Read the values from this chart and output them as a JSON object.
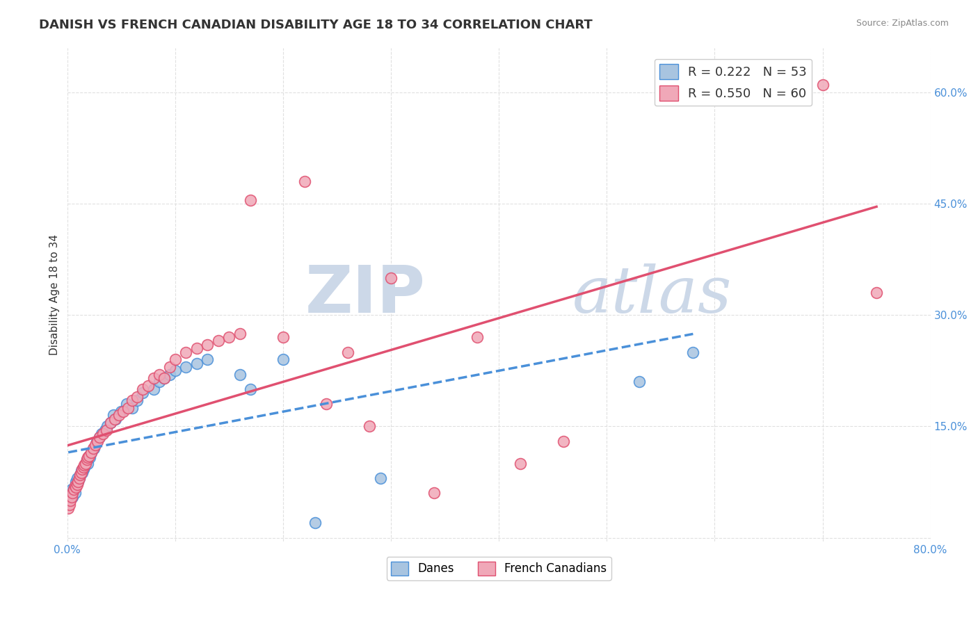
{
  "title": "DANISH VS FRENCH CANADIAN DISABILITY AGE 18 TO 34 CORRELATION CHART",
  "source": "Source: ZipAtlas.com",
  "xlabel": "",
  "ylabel": "Disability Age 18 to 34",
  "xlim": [
    0.0,
    0.8
  ],
  "ylim": [
    -0.005,
    0.66
  ],
  "xticks": [
    0.0,
    0.1,
    0.2,
    0.3,
    0.4,
    0.5,
    0.6,
    0.7,
    0.8
  ],
  "ytick_positions": [
    0.0,
    0.15,
    0.3,
    0.45,
    0.6
  ],
  "ytick_labels": [
    "",
    "15.0%",
    "30.0%",
    "45.0%",
    "60.0%"
  ],
  "danes_color": "#a8c4e0",
  "french_color": "#f0a8b8",
  "danes_line_color": "#4a90d9",
  "french_line_color": "#e05070",
  "danes_label": "Danes",
  "french_label": "French Canadians",
  "r_danes": "0.222",
  "n_danes": "53",
  "r_french": "0.550",
  "n_french": "60",
  "danes_x": [
    0.001,
    0.002,
    0.003,
    0.004,
    0.005,
    0.005,
    0.006,
    0.007,
    0.007,
    0.008,
    0.009,
    0.01,
    0.011,
    0.012,
    0.013,
    0.014,
    0.015,
    0.016,
    0.017,
    0.018,
    0.019,
    0.02,
    0.021,
    0.022,
    0.025,
    0.027,
    0.03,
    0.032,
    0.035,
    0.037,
    0.04,
    0.043,
    0.045,
    0.05,
    0.055,
    0.06,
    0.065,
    0.07,
    0.08,
    0.085,
    0.09,
    0.095,
    0.1,
    0.11,
    0.12,
    0.13,
    0.16,
    0.17,
    0.2,
    0.23,
    0.29,
    0.53,
    0.58
  ],
  "danes_y": [
    0.05,
    0.055,
    0.06,
    0.065,
    0.06,
    0.055,
    0.065,
    0.07,
    0.06,
    0.075,
    0.08,
    0.075,
    0.08,
    0.085,
    0.09,
    0.088,
    0.092,
    0.095,
    0.1,
    0.105,
    0.1,
    0.11,
    0.108,
    0.115,
    0.12,
    0.13,
    0.135,
    0.14,
    0.145,
    0.15,
    0.155,
    0.165,
    0.16,
    0.17,
    0.18,
    0.175,
    0.185,
    0.195,
    0.2,
    0.21,
    0.215,
    0.22,
    0.225,
    0.23,
    0.235,
    0.24,
    0.22,
    0.2,
    0.24,
    0.02,
    0.08,
    0.21,
    0.25
  ],
  "french_x": [
    0.001,
    0.002,
    0.003,
    0.004,
    0.005,
    0.006,
    0.007,
    0.008,
    0.009,
    0.01,
    0.011,
    0.012,
    0.013,
    0.014,
    0.015,
    0.016,
    0.017,
    0.018,
    0.019,
    0.02,
    0.022,
    0.024,
    0.026,
    0.028,
    0.03,
    0.033,
    0.036,
    0.04,
    0.044,
    0.048,
    0.052,
    0.056,
    0.06,
    0.065,
    0.07,
    0.075,
    0.08,
    0.085,
    0.09,
    0.095,
    0.1,
    0.11,
    0.12,
    0.13,
    0.14,
    0.15,
    0.16,
    0.17,
    0.2,
    0.22,
    0.24,
    0.26,
    0.28,
    0.3,
    0.34,
    0.38,
    0.42,
    0.46,
    0.7,
    0.75
  ],
  "french_y": [
    0.04,
    0.045,
    0.05,
    0.055,
    0.06,
    0.065,
    0.07,
    0.068,
    0.072,
    0.075,
    0.08,
    0.085,
    0.088,
    0.092,
    0.095,
    0.098,
    0.1,
    0.105,
    0.108,
    0.11,
    0.115,
    0.12,
    0.125,
    0.13,
    0.135,
    0.14,
    0.145,
    0.155,
    0.16,
    0.165,
    0.17,
    0.175,
    0.185,
    0.19,
    0.2,
    0.205,
    0.215,
    0.22,
    0.215,
    0.23,
    0.24,
    0.25,
    0.255,
    0.26,
    0.265,
    0.27,
    0.275,
    0.455,
    0.27,
    0.48,
    0.18,
    0.25,
    0.15,
    0.35,
    0.06,
    0.27,
    0.1,
    0.13,
    0.61,
    0.33
  ],
  "background_color": "#ffffff",
  "grid_color": "#e0e0e0",
  "watermark_zip": "ZIP",
  "watermark_atlas": "atlas",
  "watermark_color": "#ccd8e8",
  "title_fontsize": 13,
  "axis_label_fontsize": 11,
  "tick_fontsize": 11
}
